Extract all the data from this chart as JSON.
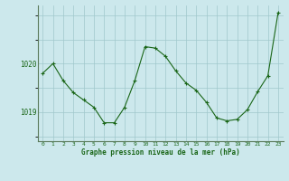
{
  "x": [
    0,
    1,
    2,
    3,
    4,
    5,
    6,
    7,
    8,
    9,
    10,
    11,
    12,
    13,
    14,
    15,
    16,
    17,
    18,
    19,
    20,
    21,
    22,
    23
  ],
  "y": [
    1019.8,
    1020.0,
    1019.65,
    1019.4,
    1019.25,
    1019.1,
    1018.78,
    1018.78,
    1019.1,
    1019.65,
    1020.35,
    1020.32,
    1020.15,
    1019.85,
    1019.6,
    1019.45,
    1019.2,
    1018.88,
    1018.82,
    1018.85,
    1019.05,
    1019.42,
    1019.75,
    1021.05
  ],
  "line_color": "#1a6618",
  "marker": "+",
  "marker_size": 3,
  "background_color": "#cce8ec",
  "grid_color": "#a0c8cc",
  "xlabel": "Graphe pression niveau de la mer (hPa)",
  "xlabel_color": "#1a6618",
  "tick_color": "#1a6618",
  "axis_color": "#5a7a5a",
  "ylim": [
    1018.4,
    1021.2
  ],
  "xlim": [
    -0.5,
    23.5
  ],
  "yticks": [
    1019,
    1020
  ],
  "xticks": [
    0,
    1,
    2,
    3,
    4,
    5,
    6,
    7,
    8,
    9,
    10,
    11,
    12,
    13,
    14,
    15,
    16,
    17,
    18,
    19,
    20,
    21,
    22,
    23
  ],
  "figsize": [
    3.2,
    2.0
  ],
  "dpi": 100
}
